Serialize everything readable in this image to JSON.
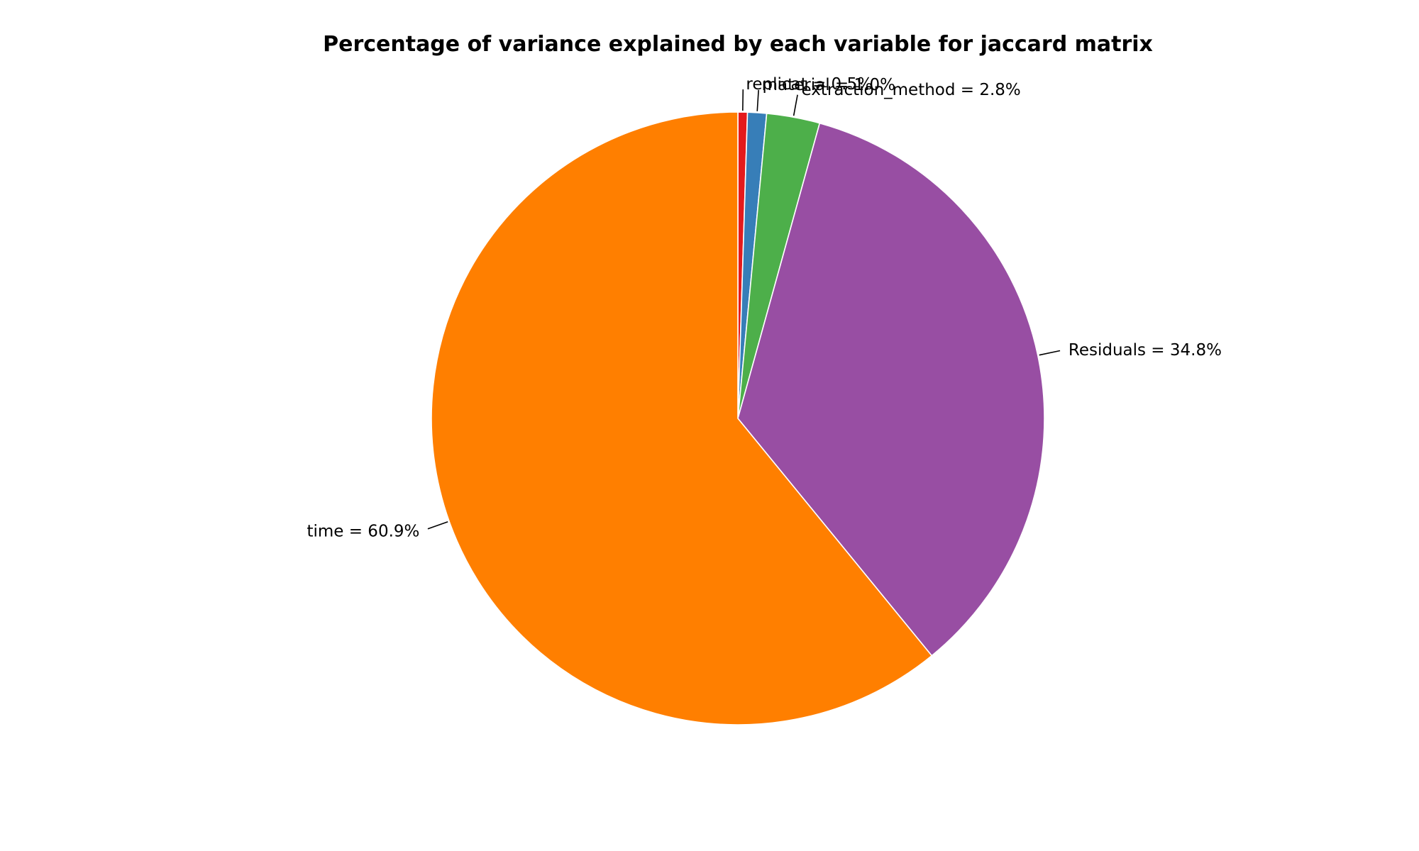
{
  "chart_data": {
    "type": "pie",
    "title": "Percentage of variance explained by each variable for jaccard matrix",
    "slices": [
      {
        "name": "replicat",
        "value": 0.5,
        "label": "replicat = 0.5%",
        "color": "#e41a1c"
      },
      {
        "name": "material",
        "value": 1.0,
        "label": "material = 1.0%",
        "color": "#377eb8"
      },
      {
        "name": "extraction_method",
        "value": 2.8,
        "label": "extraction_method = 2.8%",
        "color": "#4daf4a"
      },
      {
        "name": "Residuals",
        "value": 34.8,
        "label": "Residuals = 34.8%",
        "color": "#984ea3"
      },
      {
        "name": "time",
        "value": 60.9,
        "label": "time = 60.9%",
        "color": "#ff7f00"
      }
    ],
    "start": "12 o'clock",
    "direction": "clockwise",
    "legend": "none"
  }
}
